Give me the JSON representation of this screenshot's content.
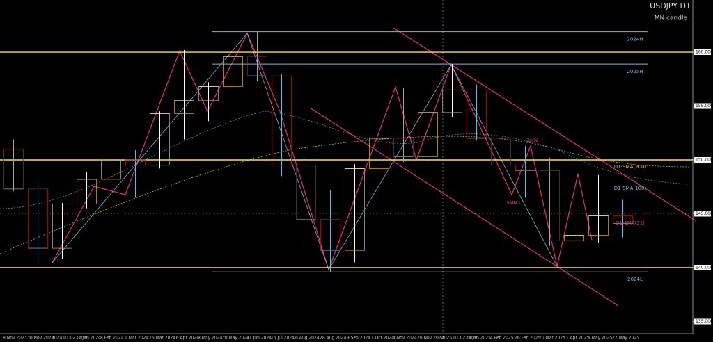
{
  "chart_data": {
    "type": "candlestick",
    "title": "USDJPY D1",
    "subtitle": "MN candle",
    "x": [
      "8 Nov 2023",
      "30 Nov 2023",
      "2024.01.02 00:00",
      "17 Jan 2024",
      "8 Feb 2024",
      "1 Mar 2024",
      "25 Mar 2024",
      "16 Apr 2024",
      "8 May 2024",
      "30 May 2024",
      "21 Jun 2024",
      "15 Jul 2024",
      "6 Aug 2024",
      "28 Aug 2024",
      "19 Sep 2024",
      "11 Oct 2024",
      "4 Nov 2024",
      "26 Nov 2024",
      "2025.01.02 00:00",
      "24 Jan 2025",
      "4 Feb 2025",
      "26 Feb 2025",
      "20 Mar 2025",
      "11 Apr 2025",
      "5 May 2025",
      "27 May 2025"
    ],
    "open": [
      151.0,
      147.3,
      141.8,
      145.9,
      148.2,
      150.0,
      149.5,
      154.3,
      155.5,
      156.8,
      159.6,
      157.8,
      149.5,
      144.5,
      141.6,
      149.2,
      152.0,
      150.3,
      154.4,
      156.5,
      152.0,
      149.5,
      149.0,
      142.5,
      143.0,
      144.8
    ],
    "high": [
      151.9,
      148.0,
      146.0,
      148.9,
      150.8,
      150.9,
      154.5,
      160.2,
      157.2,
      159.8,
      161.9,
      158.0,
      150.0,
      147.2,
      149.6,
      153.9,
      156.7,
      154.6,
      158.9,
      157.0,
      154.8,
      151.3,
      150.2,
      144.0,
      148.6,
      146.3
    ],
    "low": [
      147.1,
      140.3,
      140.8,
      145.5,
      147.6,
      146.5,
      149.2,
      151.9,
      153.6,
      154.5,
      157.3,
      148.5,
      141.7,
      139.6,
      140.5,
      148.8,
      149.8,
      148.6,
      154.0,
      151.8,
      148.8,
      146.5,
      142.0,
      139.9,
      142.3,
      142.8
    ],
    "close": [
      147.3,
      141.8,
      145.9,
      148.2,
      150.0,
      149.5,
      154.3,
      155.5,
      156.8,
      159.6,
      157.8,
      149.5,
      144.5,
      141.6,
      149.2,
      152.0,
      150.3,
      154.4,
      156.5,
      152.0,
      149.5,
      149.0,
      142.5,
      143.0,
      144.8,
      144.1
    ],
    "up_color": "#ffffff",
    "down_color": "#6ab7d8",
    "ylim": [
      133.87,
      164.84
    ],
    "yticks": [
      {
        "value": 135,
        "label": "135.000"
      },
      {
        "value": 140,
        "label": "140.000"
      },
      {
        "value": 145,
        "label": "145.000"
      },
      {
        "value": 150,
        "label": "150.000"
      },
      {
        "value": 155,
        "label": "155.000"
      },
      {
        "value": 160,
        "label": "160.000"
      }
    ],
    "levels": [
      {
        "label": "2024H",
        "value": 161.9,
        "color": "#7fb6d6"
      },
      {
        "value": 160,
        "color": "#ffe14d"
      },
      {
        "label": "2025H",
        "value": 158.9,
        "color": "#7fb6d6"
      },
      {
        "value": 150,
        "color": "#ffe14d"
      },
      {
        "value": 140,
        "color": "#ffe14d"
      },
      {
        "label": "2024L",
        "value": 139.6,
        "color": "#7fb6d6"
      }
    ],
    "annotations": [
      "D1-SMA(200)",
      "D1-SMA(100)",
      "D1-SMA(21)",
      "3MN H",
      "3MN L"
    ]
  }
}
